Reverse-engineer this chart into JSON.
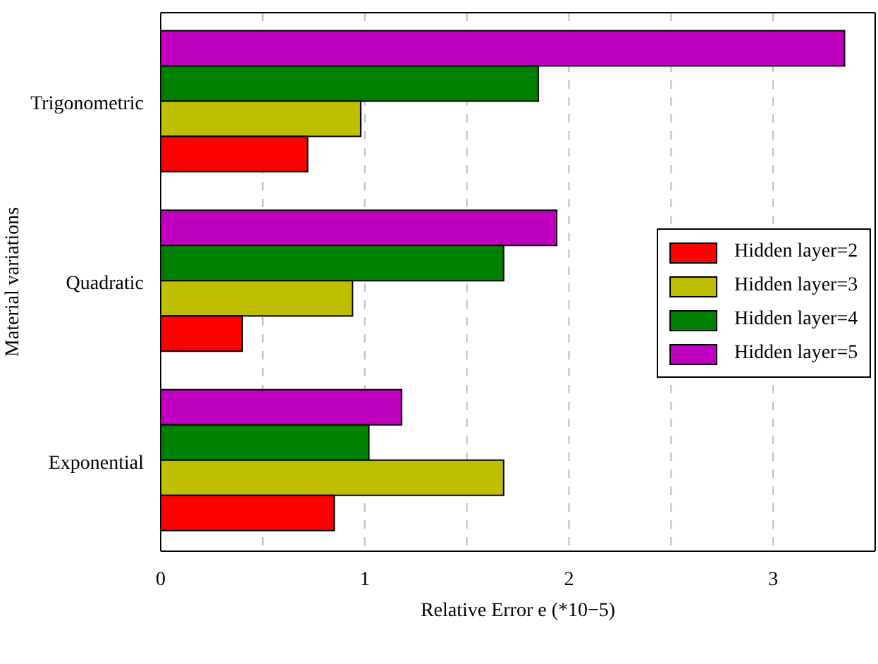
{
  "chart_data": {
    "type": "bar",
    "orientation": "horizontal",
    "xlabel": "Relative Error e (*10−5)",
    "ylabel": "Material variations",
    "categories": [
      "Trigonometric",
      "Quadratic",
      "Exponential"
    ],
    "series": [
      {
        "name": "Hidden layer=2",
        "color": "#ff0000",
        "values": [
          0.72,
          0.4,
          0.85
        ]
      },
      {
        "name": "Hidden layer=3",
        "color": "#bfbf00",
        "values": [
          0.98,
          0.94,
          1.68
        ]
      },
      {
        "name": "Hidden layer=4",
        "color": "#008000",
        "values": [
          1.85,
          1.68,
          1.02
        ]
      },
      {
        "name": "Hidden layer=5",
        "color": "#bf00bf",
        "values": [
          3.35,
          1.94,
          1.18
        ]
      }
    ],
    "xlim": [
      0,
      3.5
    ],
    "xticks": [
      0,
      {
        "value": 0.5,
        "label": null
      },
      1,
      {
        "value": 1.5,
        "label": null
      },
      2,
      {
        "value": 2.5,
        "label": null
      },
      3
    ],
    "grid": "x",
    "legend": "right"
  }
}
